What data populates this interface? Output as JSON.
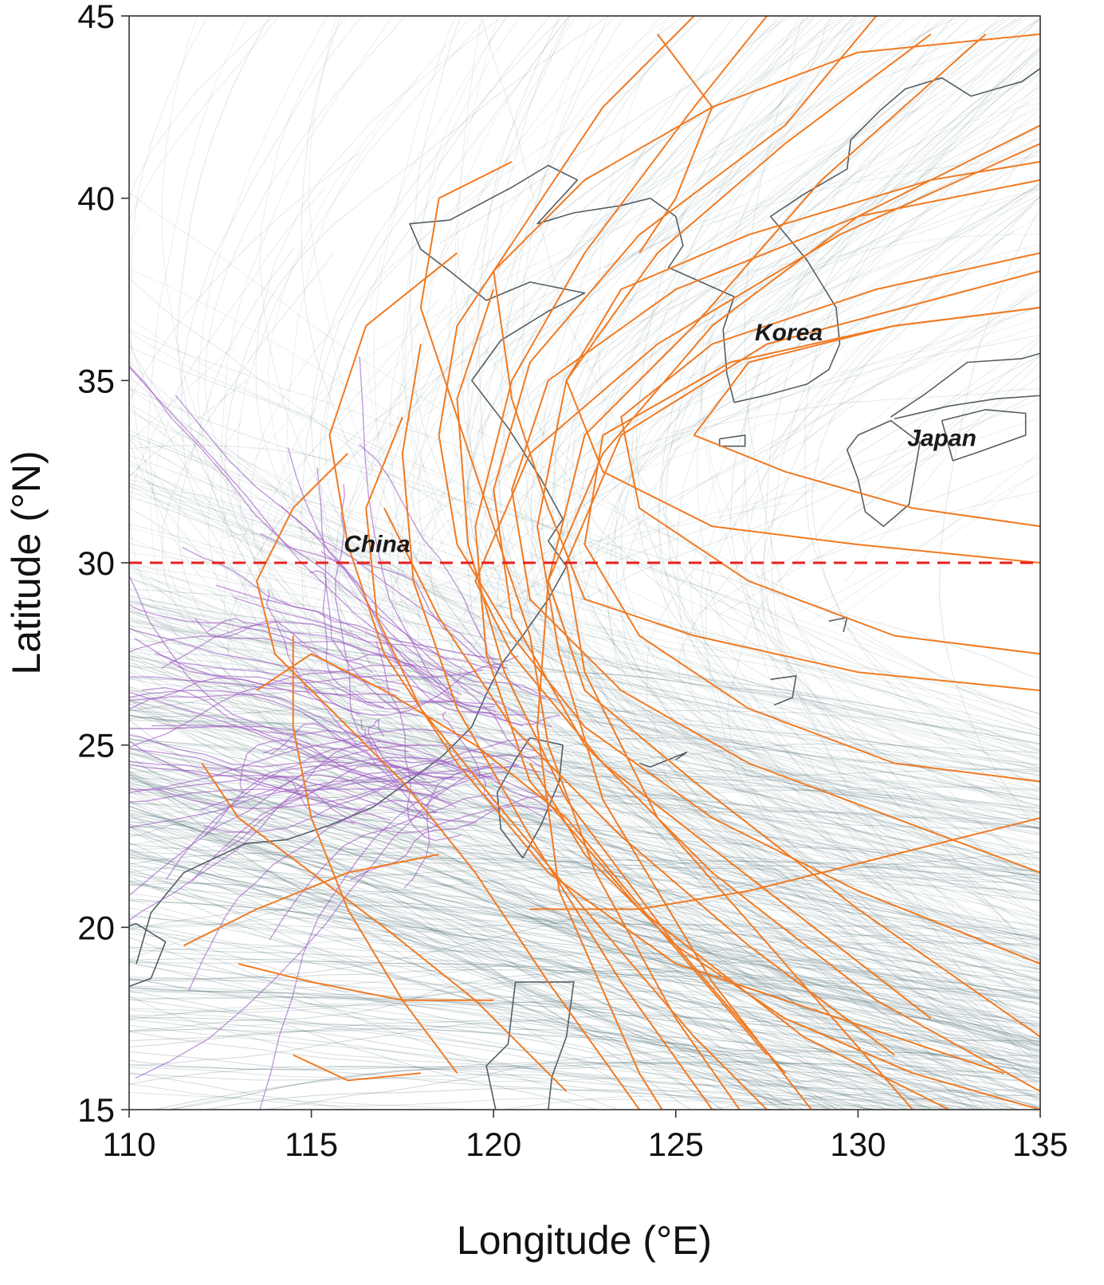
{
  "chart_data": {
    "type": "map",
    "xlabel": "Longitude (°E)",
    "ylabel": "Latitude (°N)",
    "xlim": [
      110,
      135
    ],
    "ylim": [
      15,
      45
    ],
    "x_ticks": [
      "110",
      "115",
      "120",
      "125",
      "130",
      "135"
    ],
    "y_ticks": [
      "15",
      "20",
      "25",
      "30",
      "35",
      "40",
      "45"
    ],
    "x_tick_values": [
      110,
      115,
      120,
      125,
      130,
      135
    ],
    "y_tick_values": [
      15,
      20,
      25,
      30,
      35,
      40,
      45
    ],
    "reference_line": {
      "latitude": 30,
      "color": "#e8201e",
      "style": "dashed"
    },
    "labels": [
      {
        "text": "China",
        "lon": 116.8,
        "lat": 30.3
      },
      {
        "text": "Korea",
        "lon": 128.1,
        "lat": 36.1
      },
      {
        "text": "Japan",
        "lon": 132.3,
        "lat": 33.2
      }
    ],
    "colors": {
      "background_tracks": "#3d6166",
      "highlight_tracks": "#f07a22",
      "inland_tracks": "#9b59c2",
      "coastline": "#555e63",
      "reference_line": "#e8201e"
    },
    "highlight_tracks": [
      [
        [
          126.5,
          12.0
        ],
        [
          124.0,
          16.0
        ],
        [
          121.8,
          21.0
        ],
        [
          121.2,
          25.5
        ],
        [
          121.5,
          29.5
        ],
        [
          123.0,
          33.0
        ],
        [
          126.0,
          36.5
        ],
        [
          130.0,
          39.5
        ],
        [
          135.0,
          42.0
        ]
      ],
      [
        [
          129.5,
          14.0
        ],
        [
          126.0,
          18.5
        ],
        [
          123.0,
          23.5
        ],
        [
          121.8,
          27.5
        ],
        [
          121.2,
          31.0
        ],
        [
          122.0,
          35.0
        ],
        [
          124.5,
          38.5
        ],
        [
          128.0,
          41.5
        ],
        [
          132.0,
          44.5
        ]
      ],
      [
        [
          131.5,
          15.0
        ],
        [
          128.0,
          19.0
        ],
        [
          124.5,
          23.0
        ],
        [
          122.5,
          27.0
        ],
        [
          122.0,
          30.0
        ],
        [
          123.5,
          33.5
        ],
        [
          127.5,
          36.0
        ],
        [
          135.0,
          38.0
        ]
      ],
      [
        [
          135.0,
          15.5
        ],
        [
          130.5,
          18.0
        ],
        [
          126.0,
          21.5
        ],
        [
          122.5,
          25.0
        ],
        [
          120.5,
          28.5
        ],
        [
          120.0,
          32.0
        ],
        [
          121.0,
          35.5
        ],
        [
          124.0,
          39.0
        ],
        [
          128.0,
          42.0
        ],
        [
          130.5,
          45.0
        ]
      ],
      [
        [
          133.5,
          14.5
        ],
        [
          128.5,
          17.0
        ],
        [
          124.0,
          20.5
        ],
        [
          121.0,
          24.0
        ],
        [
          119.8,
          27.5
        ],
        [
          119.5,
          31.0
        ],
        [
          120.5,
          35.0
        ],
        [
          122.5,
          38.5
        ],
        [
          125.5,
          42.5
        ],
        [
          127.5,
          45.0
        ]
      ],
      [
        [
          135.0,
          19.0
        ],
        [
          130.0,
          21.0
        ],
        [
          126.0,
          23.0
        ],
        [
          122.5,
          25.5
        ],
        [
          120.5,
          28.0
        ],
        [
          119.0,
          30.5
        ],
        [
          118.5,
          33.5
        ],
        [
          119.0,
          36.5
        ],
        [
          121.0,
          39.5
        ],
        [
          123.0,
          42.5
        ],
        [
          125.5,
          45.0
        ]
      ],
      [
        [
          128.0,
          16.0
        ],
        [
          125.0,
          19.5
        ],
        [
          122.0,
          23.5
        ],
        [
          120.3,
          27.0
        ],
        [
          119.3,
          30.5
        ],
        [
          119.0,
          34.5
        ],
        [
          120.0,
          37.5
        ]
      ],
      [
        [
          135.0,
          21.5
        ],
        [
          131.0,
          23.0
        ],
        [
          127.0,
          24.5
        ],
        [
          123.5,
          26.5
        ],
        [
          121.0,
          29.0
        ],
        [
          120.5,
          32.0
        ],
        [
          121.5,
          35.0
        ],
        [
          125.0,
          37.5
        ],
        [
          130.0,
          39.5
        ],
        [
          135.0,
          40.5
        ]
      ],
      [
        [
          126.0,
          15.0
        ],
        [
          123.5,
          18.5
        ],
        [
          121.0,
          22.5
        ],
        [
          119.0,
          26.0
        ],
        [
          117.8,
          29.5
        ],
        [
          117.5,
          33.0
        ],
        [
          118.0,
          36.0
        ]
      ],
      [
        [
          131.0,
          16.5
        ],
        [
          127.0,
          19.5
        ],
        [
          123.5,
          22.5
        ],
        [
          120.5,
          25.5
        ],
        [
          118.5,
          28.5
        ],
        [
          117.0,
          31.5
        ]
      ],
      [
        [
          135.0,
          24.0
        ],
        [
          131.0,
          24.5
        ],
        [
          127.0,
          26.0
        ],
        [
          124.0,
          28.0
        ],
        [
          122.5,
          30.5
        ],
        [
          123.0,
          33.5
        ],
        [
          126.5,
          35.5
        ],
        [
          131.0,
          36.5
        ],
        [
          135.0,
          37.0
        ]
      ],
      [
        [
          129.0,
          13.5
        ],
        [
          125.5,
          17.0
        ],
        [
          122.5,
          20.5
        ],
        [
          120.0,
          23.5
        ],
        [
          118.0,
          26.0
        ],
        [
          116.8,
          28.5
        ],
        [
          116.5,
          31.5
        ],
        [
          117.5,
          34.0
        ]
      ],
      [
        [
          124.0,
          15.0
        ],
        [
          121.5,
          18.5
        ],
        [
          119.5,
          21.5
        ],
        [
          117.5,
          24.0
        ],
        [
          115.5,
          26.0
        ],
        [
          114.0,
          27.5
        ],
        [
          113.5,
          29.5
        ],
        [
          114.5,
          31.5
        ],
        [
          116.0,
          33.0
        ]
      ],
      [
        [
          135.0,
          27.5
        ],
        [
          131.0,
          28.0
        ],
        [
          127.0,
          29.5
        ],
        [
          124.0,
          31.5
        ],
        [
          123.5,
          34.0
        ],
        [
          126.0,
          36.0
        ],
        [
          130.5,
          37.5
        ],
        [
          135.0,
          38.5
        ]
      ],
      [
        [
          132.0,
          17.5
        ],
        [
          127.5,
          21.0
        ],
        [
          123.0,
          24.5
        ],
        [
          120.5,
          27.5
        ],
        [
          119.5,
          29.5
        ],
        [
          121.0,
          33.0
        ],
        [
          124.5,
          36.0
        ],
        [
          129.5,
          39.0
        ],
        [
          135.0,
          41.5
        ]
      ],
      [
        [
          127.5,
          16.5
        ],
        [
          124.5,
          20.0
        ],
        [
          122.0,
          23.0
        ],
        [
          119.5,
          25.0
        ],
        [
          117.0,
          26.5
        ],
        [
          115.0,
          27.5
        ],
        [
          113.5,
          26.5
        ]
      ],
      [
        [
          135.0,
          17.0
        ],
        [
          130.0,
          20.5
        ],
        [
          125.5,
          24.0
        ],
        [
          122.5,
          26.5
        ],
        [
          121.5,
          29.5
        ],
        [
          122.5,
          33.5
        ],
        [
          125.5,
          36.5
        ],
        [
          129.0,
          40.5
        ],
        [
          133.5,
          44.5
        ]
      ],
      [
        [
          122.0,
          15.5
        ],
        [
          119.5,
          18.0
        ],
        [
          117.0,
          20.0
        ],
        [
          115.0,
          21.5
        ],
        [
          113.0,
          23.0
        ],
        [
          112.0,
          24.5
        ]
      ],
      [
        [
          135.0,
          31.0
        ],
        [
          131.5,
          31.5
        ],
        [
          128.0,
          32.5
        ],
        [
          125.5,
          33.5
        ],
        [
          127.0,
          35.5
        ],
        [
          131.0,
          36.5
        ],
        [
          135.0,
          37.0
        ]
      ],
      [
        [
          128.5,
          12.5
        ],
        [
          125.0,
          17.5
        ],
        [
          122.8,
          21.5
        ],
        [
          121.5,
          25.0
        ],
        [
          121.0,
          28.0
        ],
        [
          120.0,
          31.0
        ],
        [
          119.0,
          34.0
        ],
        [
          118.0,
          37.0
        ],
        [
          118.5,
          40.0
        ],
        [
          120.5,
          41.0
        ]
      ],
      [
        [
          113.0,
          19.0
        ],
        [
          115.0,
          18.5
        ],
        [
          117.5,
          18.0
        ],
        [
          120.0,
          18.0
        ]
      ],
      [
        [
          114.5,
          16.5
        ],
        [
          116.0,
          15.8
        ],
        [
          118.0,
          16.0
        ]
      ],
      [
        [
          111.5,
          19.5
        ],
        [
          113.5,
          20.5
        ],
        [
          116.0,
          21.5
        ],
        [
          118.5,
          22.0
        ]
      ],
      [
        [
          135.0,
          23.0
        ],
        [
          131.0,
          22.0
        ],
        [
          127.0,
          21.0
        ],
        [
          124.0,
          20.5
        ],
        [
          121.0,
          20.5
        ]
      ],
      [
        [
          135.0,
          15.0
        ],
        [
          131.5,
          16.0
        ],
        [
          128.0,
          17.5
        ],
        [
          125.0,
          19.5
        ],
        [
          122.5,
          22.0
        ],
        [
          121.0,
          24.5
        ]
      ],
      [
        [
          135.0,
          26.5
        ],
        [
          130.0,
          27.0
        ],
        [
          125.5,
          28.0
        ],
        [
          122.5,
          29.0
        ],
        [
          121.5,
          31.5
        ],
        [
          120.5,
          34.5
        ],
        [
          120.0,
          38.0
        ],
        [
          122.5,
          40.5
        ],
        [
          126.0,
          42.5
        ],
        [
          130.0,
          44.0
        ],
        [
          135.0,
          44.5
        ]
      ],
      [
        [
          134.0,
          16.0
        ],
        [
          129.5,
          17.5
        ],
        [
          125.0,
          19.0
        ],
        [
          121.5,
          21.5
        ],
        [
          119.0,
          24.5
        ],
        [
          117.0,
          27.5
        ],
        [
          116.0,
          30.5
        ],
        [
          115.5,
          33.5
        ],
        [
          116.5,
          36.5
        ],
        [
          119.0,
          38.5
        ]
      ],
      [
        [
          124.5,
          44.5
        ],
        [
          126.0,
          42.5
        ],
        [
          125.0,
          40.0
        ],
        [
          124.0,
          38.5
        ]
      ],
      [
        [
          135.0,
          30.0
        ],
        [
          130.0,
          30.5
        ],
        [
          126.0,
          31.0
        ],
        [
          123.0,
          32.5
        ],
        [
          122.0,
          35.0
        ],
        [
          123.5,
          37.5
        ],
        [
          127.0,
          39.0
        ],
        [
          132.0,
          40.5
        ],
        [
          135.0,
          41.0
        ]
      ],
      [
        [
          119.0,
          16.0
        ],
        [
          117.5,
          18.0
        ],
        [
          116.0,
          20.5
        ],
        [
          115.0,
          23.0
        ],
        [
          114.5,
          25.5
        ],
        [
          114.5,
          28.0
        ]
      ]
    ]
  }
}
